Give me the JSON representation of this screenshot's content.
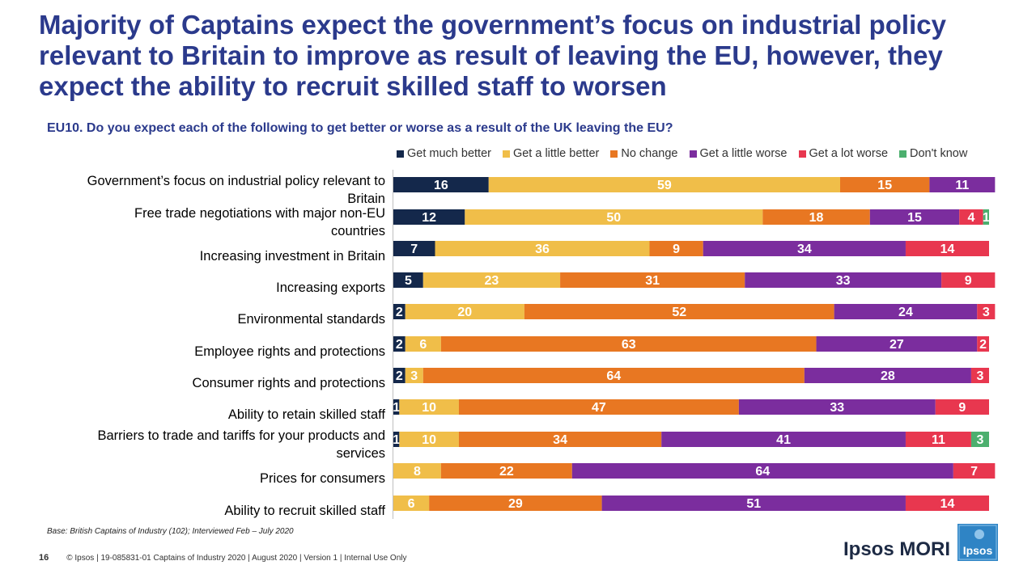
{
  "title": "Majority of Captains expect the government’s focus on industrial policy relevant to Britain to improve as result of leaving the EU, however, they expect the ability to recruit skilled staff to worsen",
  "question": "EU10. Do you expect each of the following to get better or worse as a result of the UK leaving the EU?",
  "base_note": "Base: British Captains of Industry (102); Interviewed Feb – July 2020",
  "footer": {
    "page_number": "16",
    "text": "© Ipsos | 19-085831-01 Captains of Industry 2020 | August 2020 | Version 1 | Internal Use Only"
  },
  "brand": {
    "name": "Ipsos MORI",
    "logo_text": "Ipsos"
  },
  "colors": {
    "title": "#2b3a8c",
    "much_better": "#14284b",
    "little_better": "#f0be49",
    "no_change": "#e87722",
    "little_worse": "#7b2d9e",
    "lot_worse": "#e8374f",
    "dont_know": "#4caf6e",
    "logo": "#2f84c5"
  },
  "chart_data": {
    "type": "stacked-bar-horizontal",
    "legend_position": "top",
    "series": [
      {
        "name": "Get much better",
        "color": "#14284b",
        "values": [
          16,
          12,
          7,
          5,
          2,
          2,
          2,
          1,
          1,
          0,
          0
        ]
      },
      {
        "name": "Get a little better",
        "color": "#f0be49",
        "values": [
          59,
          50,
          36,
          23,
          20,
          6,
          3,
          10,
          10,
          8,
          6
        ]
      },
      {
        "name": "No change",
        "color": "#e87722",
        "values": [
          15,
          18,
          9,
          31,
          52,
          63,
          64,
          47,
          34,
          22,
          29
        ]
      },
      {
        "name": "Get a little worse",
        "color": "#7b2d9e",
        "values": [
          11,
          15,
          34,
          33,
          24,
          27,
          28,
          33,
          41,
          64,
          51
        ]
      },
      {
        "name": "Get a lot worse",
        "color": "#e8374f",
        "values": [
          0,
          4,
          14,
          9,
          3,
          2,
          3,
          9,
          11,
          7,
          14
        ]
      },
      {
        "name": "Don't know",
        "color": "#4caf6e",
        "values": [
          0,
          1,
          0,
          0,
          0,
          0,
          0,
          0,
          3,
          0,
          0
        ]
      }
    ],
    "categories": [
      [
        "Government’s focus on industrial policy relevant to",
        "Britain"
      ],
      [
        "Free trade negotiations with major non-EU",
        "countries"
      ],
      [
        "Increasing investment in Britain"
      ],
      [
        "Increasing exports"
      ],
      [
        "Environmental standards"
      ],
      [
        "Employee rights and protections"
      ],
      [
        "Consumer rights and protections"
      ],
      [
        "Ability to retain skilled staff"
      ],
      [
        "Barriers to trade and tariffs for your products and",
        "services"
      ],
      [
        "Prices for consumers"
      ],
      [
        "Ability to recruit skilled staff"
      ]
    ],
    "xlim": [
      0,
      101
    ]
  }
}
